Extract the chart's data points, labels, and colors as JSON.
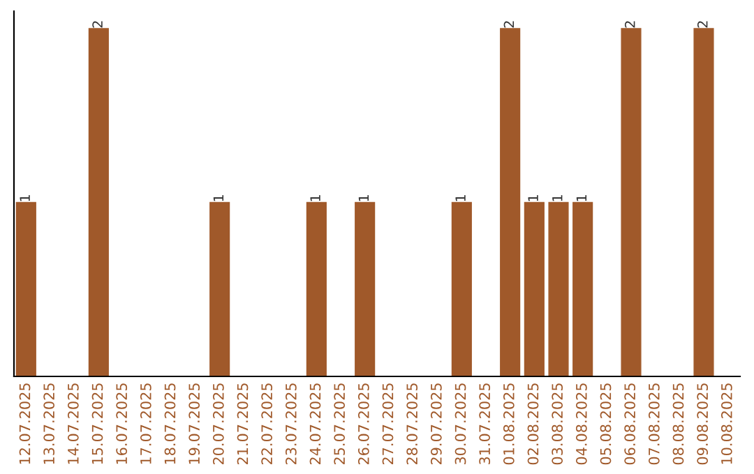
{
  "chart_data": {
    "type": "bar",
    "categories": [
      "12.07.2025",
      "13.07.2025",
      "14.07.2025",
      "15.07.2025",
      "16.07.2025",
      "17.07.2025",
      "18.07.2025",
      "19.07.2025",
      "20.07.2025",
      "21.07.2025",
      "22.07.2025",
      "23.07.2025",
      "24.07.2025",
      "25.07.2025",
      "26.07.2025",
      "27.07.2025",
      "28.07.2025",
      "29.07.2025",
      "30.07.2025",
      "31.07.2025",
      "01.08.2025",
      "02.08.2025",
      "03.08.2025",
      "04.08.2025",
      "05.08.2025",
      "06.08.2025",
      "07.08.2025",
      "08.08.2025",
      "09.08.2025",
      "10.08.2025"
    ],
    "values": [
      1,
      0,
      0,
      2,
      0,
      0,
      0,
      0,
      1,
      0,
      0,
      0,
      1,
      0,
      1,
      0,
      0,
      0,
      1,
      0,
      2,
      1,
      1,
      1,
      0,
      2,
      0,
      0,
      2,
      0
    ],
    "value_labels": [
      "1",
      null,
      null,
      "2",
      null,
      null,
      null,
      null,
      "1",
      null,
      null,
      null,
      "1",
      null,
      "1",
      null,
      null,
      null,
      "1",
      null,
      "2",
      "1",
      "1",
      "1",
      null,
      "2",
      null,
      null,
      "2",
      null
    ],
    "color": "#a0592a",
    "tick_labels": "x",
    "grid": false,
    "legend": false
  }
}
